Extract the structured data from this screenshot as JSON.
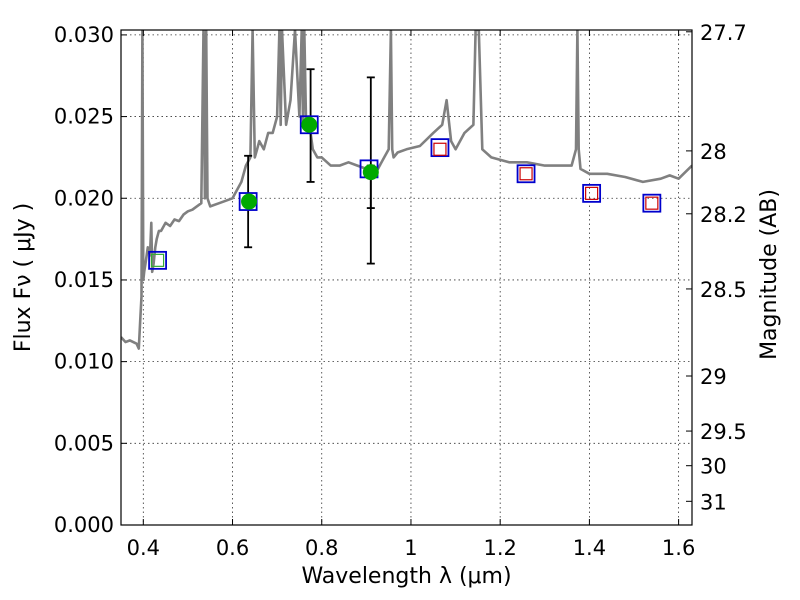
{
  "chart_data": {
    "type": "scatter",
    "title": "",
    "xlabel": "Wavelength  λ (μm)",
    "ylabel": "Flux  Fν  ( μJy )",
    "y2label": "Magnitude (AB)",
    "xlim": [
      0.35,
      1.63
    ],
    "ylim": [
      0.0,
      0.0303
    ],
    "grid": true,
    "x_ticks": [
      {
        "value": 0.4,
        "label": "0.4"
      },
      {
        "value": 0.6,
        "label": "0.6"
      },
      {
        "value": 0.8,
        "label": "0.8"
      },
      {
        "value": 1.0,
        "label": "1"
      },
      {
        "value": 1.2,
        "label": "1.2"
      },
      {
        "value": 1.4,
        "label": "1.4"
      },
      {
        "value": 1.6,
        "label": "1.6"
      }
    ],
    "y_ticks": [
      {
        "value": 0.0,
        "label": "0.000"
      },
      {
        "value": 0.005,
        "label": "0.005"
      },
      {
        "value": 0.01,
        "label": "0.010"
      },
      {
        "value": 0.015,
        "label": "0.015"
      },
      {
        "value": 0.02,
        "label": "0.020"
      },
      {
        "value": 0.025,
        "label": "0.025"
      },
      {
        "value": 0.03,
        "label": "0.030"
      }
    ],
    "y2_ticks": [
      {
        "label": "27.7",
        "flux": 0.03019
      },
      {
        "label": "28",
        "flux": 0.0229
      },
      {
        "label": "28.2",
        "flux": 0.01905
      },
      {
        "label": "28.5",
        "flux": 0.01445
      },
      {
        "label": "29",
        "flux": 0.00912
      },
      {
        "label": "29.5",
        "flux": 0.00575
      },
      {
        "label": "30",
        "flux": 0.00363
      },
      {
        "label": "31",
        "flux": 0.00145
      }
    ],
    "series": [
      {
        "kind": "line",
        "color": "#808080",
        "x": [
          0.35,
          0.36,
          0.37,
          0.385,
          0.39,
          0.393,
          0.396,
          0.398,
          0.4,
          0.402,
          0.405,
          0.41,
          0.415,
          0.418,
          0.42,
          0.423,
          0.427,
          0.43,
          0.435,
          0.44,
          0.45,
          0.46,
          0.47,
          0.48,
          0.49,
          0.5,
          0.51,
          0.52,
          0.53,
          0.535,
          0.538,
          0.541,
          0.544,
          0.55,
          0.57,
          0.6,
          0.62,
          0.63,
          0.64,
          0.645,
          0.65,
          0.655,
          0.66,
          0.67,
          0.68,
          0.69,
          0.7,
          0.705,
          0.708,
          0.711,
          0.72,
          0.73,
          0.74,
          0.75,
          0.755,
          0.758,
          0.761,
          0.765,
          0.77,
          0.78,
          0.79,
          0.8,
          0.82,
          0.84,
          0.86,
          0.88,
          0.9,
          0.92,
          0.93,
          0.94,
          0.95,
          0.955,
          0.958,
          0.961,
          0.97,
          0.99,
          1.02,
          1.05,
          1.07,
          1.08,
          1.09,
          1.1,
          1.12,
          1.14,
          1.145,
          1.152,
          1.16,
          1.18,
          1.22,
          1.26,
          1.3,
          1.34,
          1.36,
          1.37,
          1.373,
          1.376,
          1.38,
          1.4,
          1.44,
          1.48,
          1.52,
          1.56,
          1.58,
          1.6,
          1.63
        ],
        "y": [
          0.0115,
          0.0112,
          0.0113,
          0.0111,
          0.0108,
          0.0125,
          0.014,
          0.0303,
          0.015,
          0.0155,
          0.016,
          0.017,
          0.0165,
          0.0185,
          0.0155,
          0.016,
          0.017,
          0.0175,
          0.018,
          0.018,
          0.0185,
          0.0183,
          0.0187,
          0.0186,
          0.019,
          0.0192,
          0.0193,
          0.0195,
          0.0197,
          0.0303,
          0.02,
          0.0303,
          0.02,
          0.0195,
          0.0197,
          0.02,
          0.021,
          0.022,
          0.0225,
          0.0303,
          0.0225,
          0.023,
          0.0235,
          0.023,
          0.024,
          0.024,
          0.025,
          0.0303,
          0.0245,
          0.0303,
          0.0245,
          0.026,
          0.0303,
          0.025,
          0.0303,
          0.0247,
          0.0303,
          0.0245,
          0.025,
          0.023,
          0.0225,
          0.0225,
          0.022,
          0.022,
          0.0222,
          0.022,
          0.0218,
          0.0215,
          0.022,
          0.0225,
          0.023,
          0.0303,
          0.023,
          0.0225,
          0.0228,
          0.023,
          0.0232,
          0.024,
          0.0245,
          0.026,
          0.0235,
          0.023,
          0.024,
          0.0245,
          0.0303,
          0.0303,
          0.023,
          0.0225,
          0.0222,
          0.0222,
          0.022,
          0.022,
          0.022,
          0.023,
          0.0303,
          0.023,
          0.0218,
          0.0215,
          0.0215,
          0.0213,
          0.021,
          0.0212,
          0.0214,
          0.0212,
          0.022
        ]
      },
      {
        "kind": "errorbar",
        "color": "#000000",
        "points": [
          {
            "x": 0.635,
            "low": 0.017,
            "high": 0.0226
          },
          {
            "x": 0.775,
            "low": 0.021,
            "high": 0.0279
          },
          {
            "x": 0.91,
            "low": 0.016,
            "high": 0.0274
          },
          {
            "x": 0.91,
            "low": 0.0194,
            "high": 0.022
          }
        ]
      },
      {
        "kind": "squares",
        "color": "#0000cc",
        "x": [
          0.432,
          0.635,
          0.772,
          0.906,
          1.065,
          1.258,
          1.405,
          1.54
        ],
        "y": [
          0.0162,
          0.0198,
          0.0245,
          0.0218,
          0.0231,
          0.0215,
          0.0203,
          0.0197
        ]
      },
      {
        "kind": "inner-squares",
        "color": "#cc0000",
        "x": [
          1.065,
          1.258,
          1.405,
          1.54
        ],
        "y": [
          0.023,
          0.0215,
          0.0203,
          0.0197
        ]
      },
      {
        "kind": "inner-squares",
        "color": "#33aa33",
        "x": [
          0.432
        ],
        "y": [
          0.0162
        ]
      },
      {
        "kind": "dots",
        "color": "#00aa00",
        "x": [
          0.637,
          0.772,
          0.91
        ],
        "y": [
          0.0198,
          0.0245,
          0.0216
        ]
      }
    ]
  }
}
